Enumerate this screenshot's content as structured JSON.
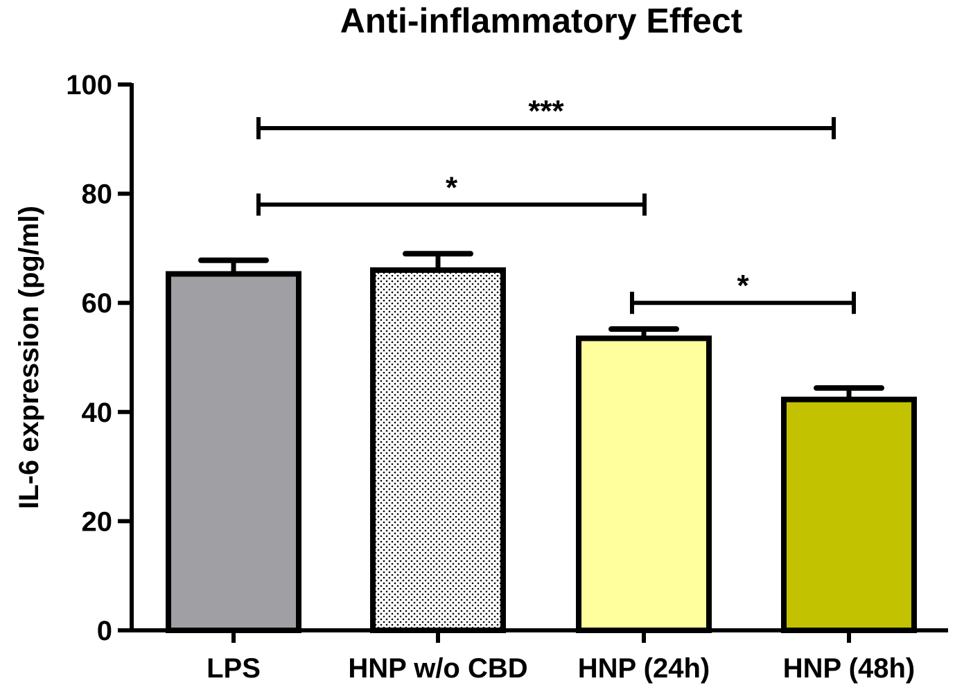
{
  "chart_data": {
    "type": "bar",
    "title": "Anti-inflammatory Effect",
    "xlabel": "",
    "ylabel": "IL-6 expression (pg/ml)",
    "ylim": [
      0,
      100
    ],
    "yticks": [
      "0",
      "20",
      "40",
      "60",
      "80",
      "100"
    ],
    "grid": false,
    "categories": [
      "LPS",
      "HNP w/o CBD",
      "HNP (24h)",
      "HNP (48h)"
    ],
    "values": [
      65.3,
      66.0,
      53.5,
      42.3
    ],
    "error": [
      2.5,
      3.0,
      1.7,
      2.1
    ],
    "fills": [
      "#a0a0a4",
      "dots",
      "#ffff9e",
      "#c2c200"
    ],
    "significance": [
      {
        "from": 0,
        "to": 3,
        "label": "***",
        "y": 92
      },
      {
        "from": 0,
        "to": 2,
        "label": "*",
        "y": 78
      },
      {
        "from": 2,
        "to": 3,
        "label": "*",
        "y": 60
      }
    ]
  }
}
